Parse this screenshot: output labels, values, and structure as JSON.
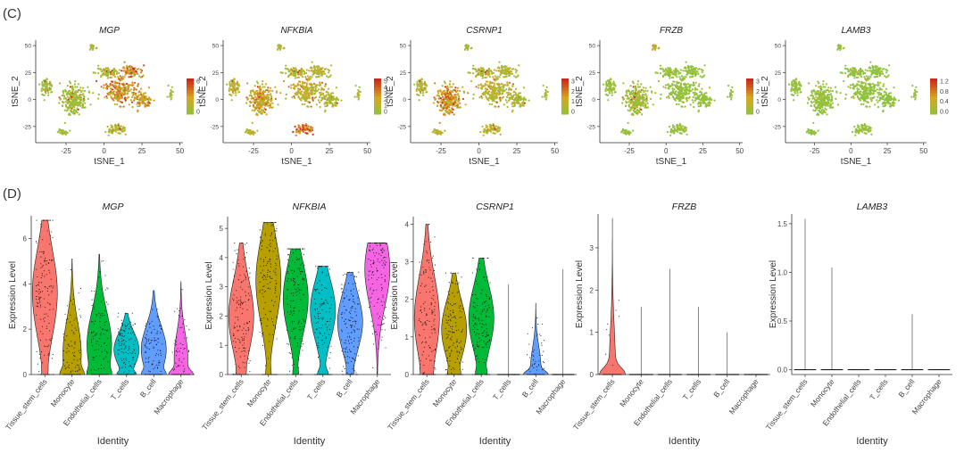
{
  "panel_labels": {
    "c": "(C)",
    "d": "(D)"
  },
  "chart_data": [
    {
      "type": "scatter",
      "panel": "(C)",
      "title": "MGP",
      "xlabel": "tSNE_1",
      "ylabel": "tSNE_2",
      "xticks": [
        -25,
        0,
        25,
        50
      ],
      "yticks": [
        50,
        25,
        0,
        -25
      ],
      "xlim": [
        -45,
        52
      ],
      "ylim": [
        -40,
        55
      ],
      "legend": {
        "ticks": [
          "6",
          "4",
          "2",
          "0"
        ],
        "range": [
          0,
          7
        ],
        "colors": [
          "#8ac43f",
          "#d9a620",
          "#cc2a1a"
        ]
      },
      "clusters": [
        {
          "name": "tissue-stem-left",
          "x": -20,
          "y": 0,
          "value": 1.0
        },
        {
          "name": "upper-left",
          "x": -38,
          "y": 12,
          "value": 0.9
        },
        {
          "name": "center",
          "x": 10,
          "y": 8,
          "value": 3.6
        },
        {
          "name": "upper-center",
          "x": 2,
          "y": 25,
          "value": 1.6
        },
        {
          "name": "upper-right",
          "x": 18,
          "y": 26,
          "value": 4.4
        },
        {
          "name": "right",
          "x": 25,
          "y": 0,
          "value": 3.6
        },
        {
          "name": "lower-center",
          "x": 8,
          "y": -28,
          "value": 1.4
        },
        {
          "name": "small-top",
          "x": -8,
          "y": 48,
          "value": 1.0
        },
        {
          "name": "far-right",
          "x": 44,
          "y": 5,
          "value": 0.8
        },
        {
          "name": "bottom-left",
          "x": -28,
          "y": -30,
          "value": 1.0
        }
      ]
    },
    {
      "type": "scatter",
      "panel": "(C)",
      "title": "NFKBIA",
      "xlabel": "tSNE_1",
      "ylabel": "tSNE_2",
      "xticks": [
        -25,
        0,
        25,
        50
      ],
      "yticks": [
        50,
        25,
        0,
        -25
      ],
      "xlim": [
        -45,
        52
      ],
      "ylim": [
        -40,
        55
      ],
      "legend": {
        "ticks": [
          "5",
          "4",
          "3",
          "2",
          "1",
          "0"
        ],
        "range": [
          0,
          5.5
        ],
        "colors": [
          "#8ac43f",
          "#d9a620",
          "#cc2a1a"
        ]
      },
      "clusters": [
        {
          "name": "tissue-stem-left",
          "x": -20,
          "y": 0,
          "value": 2.2
        },
        {
          "name": "upper-left",
          "x": -38,
          "y": 12,
          "value": 1.6
        },
        {
          "name": "center",
          "x": 10,
          "y": 8,
          "value": 1.8
        },
        {
          "name": "upper-center",
          "x": 2,
          "y": 25,
          "value": 1.4
        },
        {
          "name": "upper-right",
          "x": 18,
          "y": 26,
          "value": 1.5
        },
        {
          "name": "right",
          "x": 25,
          "y": 0,
          "value": 1.4
        },
        {
          "name": "lower-center",
          "x": 8,
          "y": -28,
          "value": 3.8
        },
        {
          "name": "small-top",
          "x": -8,
          "y": 48,
          "value": 1.2
        },
        {
          "name": "far-right",
          "x": 44,
          "y": 5,
          "value": 1.0
        },
        {
          "name": "bottom-left",
          "x": -28,
          "y": -30,
          "value": 1.5
        }
      ]
    },
    {
      "type": "scatter",
      "panel": "(C)",
      "title": "CSRNP1",
      "xlabel": "tSNE_1",
      "ylabel": "tSNE_2",
      "xticks": [
        -25,
        0,
        25,
        50
      ],
      "yticks": [
        50,
        25,
        0,
        -25
      ],
      "xlim": [
        -45,
        52
      ],
      "ylim": [
        -40,
        55
      ],
      "legend": {
        "ticks": [
          "3",
          "2",
          "1",
          "0"
        ],
        "range": [
          0,
          3.5
        ],
        "colors": [
          "#8ac43f",
          "#d9a620",
          "#cc2a1a"
        ]
      },
      "clusters": [
        {
          "name": "tissue-stem-left",
          "x": -20,
          "y": 0,
          "value": 1.7
        },
        {
          "name": "upper-left",
          "x": -38,
          "y": 12,
          "value": 0.8
        },
        {
          "name": "center",
          "x": 10,
          "y": 8,
          "value": 1.0
        },
        {
          "name": "upper-center",
          "x": 2,
          "y": 25,
          "value": 0.8
        },
        {
          "name": "upper-right",
          "x": 18,
          "y": 26,
          "value": 0.8
        },
        {
          "name": "right",
          "x": 25,
          "y": 0,
          "value": 0.8
        },
        {
          "name": "lower-center",
          "x": 8,
          "y": -28,
          "value": 0.9
        },
        {
          "name": "small-top",
          "x": -8,
          "y": 48,
          "value": 0.6
        },
        {
          "name": "far-right",
          "x": 44,
          "y": 5,
          "value": 0.5
        },
        {
          "name": "bottom-left",
          "x": -28,
          "y": -30,
          "value": 0.9
        }
      ]
    },
    {
      "type": "scatter",
      "panel": "(C)",
      "title": "FRZB",
      "xlabel": "tSNE_1",
      "ylabel": "tSNE_2",
      "xticks": [
        -25,
        0,
        25,
        50
      ],
      "yticks": [
        50,
        25,
        0,
        -25
      ],
      "xlim": [
        -45,
        52
      ],
      "ylim": [
        -40,
        55
      ],
      "legend": {
        "ticks": [
          "3",
          "2",
          "1",
          "0"
        ],
        "range": [
          0,
          3.5
        ],
        "colors": [
          "#8ac43f",
          "#d9a620",
          "#cc2a1a"
        ]
      },
      "clusters": [
        {
          "name": "tissue-stem-left",
          "x": -20,
          "y": 0,
          "value": 0.5
        },
        {
          "name": "upper-left",
          "x": -38,
          "y": 12,
          "value": 0.2
        },
        {
          "name": "center",
          "x": 10,
          "y": 8,
          "value": 0.2
        },
        {
          "name": "upper-center",
          "x": 2,
          "y": 25,
          "value": 0.2
        },
        {
          "name": "upper-right",
          "x": 18,
          "y": 26,
          "value": 0.2
        },
        {
          "name": "right",
          "x": 25,
          "y": 0,
          "value": 0.2
        },
        {
          "name": "lower-center",
          "x": 8,
          "y": -28,
          "value": 0.2
        },
        {
          "name": "small-top",
          "x": -8,
          "y": 48,
          "value": 1.2
        },
        {
          "name": "far-right",
          "x": 44,
          "y": 5,
          "value": 0.1
        },
        {
          "name": "bottom-left",
          "x": -28,
          "y": -30,
          "value": 0.2
        }
      ]
    },
    {
      "type": "scatter",
      "panel": "(C)",
      "title": "LAMB3",
      "xlabel": "tSNE_1",
      "ylabel": "tSNE_2",
      "xticks": [
        -25,
        0,
        25,
        50
      ],
      "yticks": [
        50,
        25,
        0,
        -25
      ],
      "xlim": [
        -45,
        52
      ],
      "ylim": [
        -40,
        55
      ],
      "legend": {
        "ticks": [
          "1.2",
          "0.8",
          "0.4",
          "0.0"
        ],
        "range": [
          0,
          1.4
        ],
        "colors": [
          "#8ac43f",
          "#d9a620",
          "#cc2a1a"
        ]
      },
      "clusters": [
        {
          "name": "tissue-stem-left",
          "x": -20,
          "y": 0,
          "value": 0.05
        },
        {
          "name": "upper-left",
          "x": -38,
          "y": 12,
          "value": 0.02
        },
        {
          "name": "center",
          "x": 10,
          "y": 8,
          "value": 0.02
        },
        {
          "name": "upper-center",
          "x": 2,
          "y": 25,
          "value": 0.02
        },
        {
          "name": "upper-right",
          "x": 18,
          "y": 26,
          "value": 0.02
        },
        {
          "name": "right",
          "x": 25,
          "y": 0,
          "value": 0.02
        },
        {
          "name": "lower-center",
          "x": 8,
          "y": -28,
          "value": 0.02
        },
        {
          "name": "small-top",
          "x": -8,
          "y": 48,
          "value": 0.02
        },
        {
          "name": "far-right",
          "x": 44,
          "y": 5,
          "value": 0.02
        },
        {
          "name": "bottom-left",
          "x": -28,
          "y": -30,
          "value": 0.02
        }
      ]
    },
    {
      "type": "violin",
      "panel": "(D)",
      "title": "MGP",
      "xlabel": "Identity",
      "ylabel": "Expression Level",
      "ylim": [
        0,
        7
      ],
      "yticks": [
        0,
        2,
        4,
        6
      ],
      "categories": [
        "Tissue_stem_cells",
        "Monocyte",
        "Endothelial_cells",
        "T_cells",
        "B_cell",
        "Macrophage"
      ],
      "colors": [
        "#f8766d",
        "#b79f00",
        "#00ba38",
        "#00bfc4",
        "#619cff",
        "#f564e3"
      ],
      "series": [
        {
          "category": "Tissue_stem_cells",
          "max": 6.8,
          "median": 3.6,
          "zero_fraction": 0.08
        },
        {
          "category": "Monocyte",
          "max": 5.1,
          "median": 0.9,
          "zero_fraction": 0.35
        },
        {
          "category": "Endothelial_cells",
          "max": 5.3,
          "median": 1.3,
          "zero_fraction": 0.25
        },
        {
          "category": "T_cells",
          "max": 2.7,
          "median": 1.1,
          "zero_fraction": 0.3
        },
        {
          "category": "B_cell",
          "max": 3.7,
          "median": 1.1,
          "zero_fraction": 0.3
        },
        {
          "category": "Macrophage",
          "max": 4.1,
          "median": 0.7,
          "zero_fraction": 0.5
        }
      ]
    },
    {
      "type": "violin",
      "panel": "(D)",
      "title": "NFKBIA",
      "xlabel": "Identity",
      "ylabel": "Expression Level",
      "ylim": [
        0,
        5.4
      ],
      "yticks": [
        0,
        1,
        2,
        3,
        4,
        5
      ],
      "categories": [
        "Tissue_stem_cells",
        "Monocyte",
        "Endothelial_cells",
        "T_cells",
        "B_cell",
        "Macrophage"
      ],
      "colors": [
        "#f8766d",
        "#b79f00",
        "#00ba38",
        "#00bfc4",
        "#619cff",
        "#f564e3"
      ],
      "series": [
        {
          "category": "Tissue_stem_cells",
          "max": 4.5,
          "median": 2.0,
          "zero_fraction": 0.1
        },
        {
          "category": "Monocyte",
          "max": 5.2,
          "median": 3.2,
          "zero_fraction": 0.12
        },
        {
          "category": "Endothelial_cells",
          "max": 4.3,
          "median": 2.6,
          "zero_fraction": 0.12
        },
        {
          "category": "T_cells",
          "max": 3.7,
          "median": 2.2,
          "zero_fraction": 0.25
        },
        {
          "category": "B_cell",
          "max": 3.5,
          "median": 1.8,
          "zero_fraction": 0.1
        },
        {
          "category": "Macrophage",
          "max": 4.5,
          "median": 3.6,
          "zero_fraction": 0.0
        }
      ]
    },
    {
      "type": "violin",
      "panel": "(D)",
      "title": "CSRNP1",
      "xlabel": "Identity",
      "ylabel": "Expression Level",
      "ylim": [
        0,
        4.2
      ],
      "yticks": [
        0,
        1,
        2,
        3,
        4
      ],
      "categories": [
        "Tissue_stem_cells",
        "Monocyte",
        "Endothelial_cells",
        "T_cells",
        "B_cell",
        "Macrophage"
      ],
      "colors": [
        "#f8766d",
        "#b79f00",
        "#00ba38",
        "#00bfc4",
        "#619cff",
        "#f564e3"
      ],
      "series": [
        {
          "category": "Tissue_stem_cells",
          "max": 4.0,
          "median": 1.5,
          "zero_fraction": 0.1
        },
        {
          "category": "Monocyte",
          "max": 2.7,
          "median": 1.2,
          "zero_fraction": 0.2
        },
        {
          "category": "Endothelial_cells",
          "max": 3.1,
          "median": 1.5,
          "zero_fraction": 0.2
        },
        {
          "category": "T_cells",
          "max": 2.4,
          "median": 0.0,
          "zero_fraction": 0.97
        },
        {
          "category": "B_cell",
          "max": 1.9,
          "median": 0.2,
          "zero_fraction": 0.6
        },
        {
          "category": "Macrophage",
          "max": 2.8,
          "median": 0.0,
          "zero_fraction": 0.97
        }
      ]
    },
    {
      "type": "violin",
      "panel": "(D)",
      "title": "FRZB",
      "xlabel": "Identity",
      "ylabel": "Expression Level",
      "ylim": [
        0,
        3.8
      ],
      "yticks": [
        0,
        1,
        2,
        3
      ],
      "categories": [
        "Tissue_stem_cells",
        "Monocyte",
        "Endothelial_cells",
        "T_cells",
        "B_cell",
        "Macrophage"
      ],
      "colors": [
        "#f8766d",
        "#b79f00",
        "#00ba38",
        "#00bfc4",
        "#619cff",
        "#f564e3"
      ],
      "series": [
        {
          "category": "Tissue_stem_cells",
          "max": 3.7,
          "median": 0.0,
          "zero_fraction": 0.75
        },
        {
          "category": "Monocyte",
          "max": 1.6,
          "median": 0.0,
          "zero_fraction": 0.99
        },
        {
          "category": "Endothelial_cells",
          "max": 2.5,
          "median": 0.0,
          "zero_fraction": 0.97
        },
        {
          "category": "T_cells",
          "max": 1.6,
          "median": 0.0,
          "zero_fraction": 0.99
        },
        {
          "category": "B_cell",
          "max": 1.0,
          "median": 0.0,
          "zero_fraction": 0.99
        },
        {
          "category": "Macrophage",
          "max": 0.0,
          "median": 0.0,
          "zero_fraction": 1.0
        }
      ]
    },
    {
      "type": "violin",
      "panel": "(D)",
      "title": "LAMB3",
      "xlabel": "Identity",
      "ylabel": "Expression Level",
      "ylim": [
        -0.05,
        1.6
      ],
      "yticks": [
        0.0,
        0.5,
        1.0,
        1.5
      ],
      "categories": [
        "Tissue_stem_cells",
        "Monocyte",
        "Endothelial_cells",
        "T_cells",
        "B_cell",
        "Macrophage"
      ],
      "colors": [
        "#f8766d",
        "#b79f00",
        "#00ba38",
        "#00bfc4",
        "#619cff",
        "#f564e3"
      ],
      "series": [
        {
          "category": "Tissue_stem_cells",
          "max": 1.55,
          "median": 0.0,
          "zero_fraction": 0.99
        },
        {
          "category": "Monocyte",
          "max": 1.05,
          "median": 0.0,
          "zero_fraction": 0.99
        },
        {
          "category": "Endothelial_cells",
          "max": 0.0,
          "median": 0.0,
          "zero_fraction": 1.0
        },
        {
          "category": "T_cells",
          "max": 0.0,
          "median": 0.0,
          "zero_fraction": 1.0
        },
        {
          "category": "B_cell",
          "max": 0.57,
          "median": 0.0,
          "zero_fraction": 0.99
        },
        {
          "category": "Macrophage",
          "max": 0.0,
          "median": 0.0,
          "zero_fraction": 1.0
        }
      ]
    }
  ]
}
